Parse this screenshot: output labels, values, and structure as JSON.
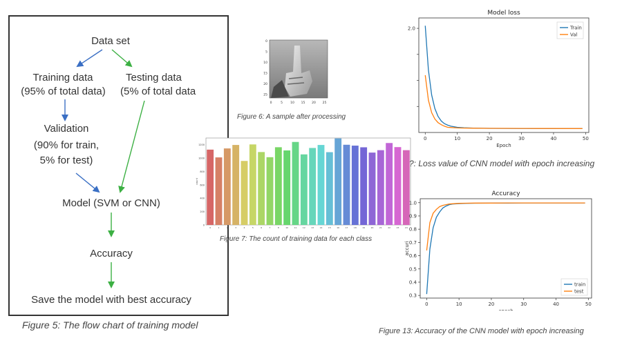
{
  "flowchart": {
    "nodes": {
      "dataset": "Data set",
      "training_1": "Training data",
      "training_2": "(95% of total data)",
      "testing_1": "Testing data",
      "testing_2": "(5% of total data",
      "validation_1": "Validation",
      "validation_2": "(90% for train,",
      "validation_3": "5% for test)",
      "model": "Model (SVM or CNN)",
      "accuracy": "Accuracy",
      "save": "Save the model with best accuracy"
    },
    "arrow_colors": {
      "blue": "#3a6fc4",
      "green": "#3cb043"
    },
    "caption": "Figure 5: The flow chart of training model"
  },
  "sample_image": {
    "caption": "Figure 6: A sample after processing",
    "x_ticks": [
      "0",
      "5",
      "10",
      "15",
      "20",
      "25"
    ],
    "y_ticks": [
      "0",
      "5",
      "10",
      "15",
      "20",
      "25"
    ]
  },
  "count_chart": {
    "caption": "Figure 7: The count of training data for each class",
    "ylabel": "count",
    "y_ticks": [
      "0",
      "200",
      "400",
      "600",
      "800",
      "1000",
      "1200"
    ],
    "x_ticks": [
      "0",
      "1",
      "2",
      "3",
      "4",
      "5",
      "6",
      "7",
      "8",
      "10",
      "11",
      "12",
      "13",
      "14",
      "15",
      "16",
      "17",
      "18",
      "19",
      "20",
      "21",
      "22",
      "23",
      "24"
    ]
  },
  "loss_chart": {
    "title": "Model loss",
    "xlabel": "Epoch",
    "caption": "?: Loss value of CNN model with epoch increasing",
    "y_tick_labels": [
      "2.0"
    ],
    "x_ticks": [
      "0",
      "10",
      "20",
      "30",
      "40",
      "50"
    ],
    "legend": [
      "Train",
      "Val"
    ]
  },
  "accuracy_chart": {
    "title": "Accuracy",
    "xlabel": "epoch",
    "ylabel": "accuri",
    "caption": "Figure 13: Accuracy of the CNN model with epoch increasing",
    "y_ticks": [
      "0.3",
      "0.4",
      "0.5",
      "0.6",
      "0.7",
      "0.8",
      "0.9",
      "1.0"
    ],
    "x_ticks": [
      "0",
      "10",
      "20",
      "30",
      "40",
      "50"
    ],
    "legend": [
      "train",
      "test"
    ]
  },
  "colors": {
    "train": "#1f77b4",
    "val": "#ff7f0e"
  },
  "chart_data": [
    {
      "type": "bar",
      "ylabel": "count",
      "categories": [
        "0",
        "1",
        "2",
        "3",
        "4",
        "5",
        "6",
        "7",
        "8",
        "10",
        "11",
        "12",
        "13",
        "14",
        "15",
        "16",
        "17",
        "18",
        "19",
        "20",
        "21",
        "22",
        "23",
        "24"
      ],
      "values": [
        1126,
        1010,
        1144,
        1196,
        957,
        1204,
        1090,
        1013,
        1162,
        1114,
        1241,
        1055,
        1151,
        1196,
        1088,
        1294,
        1199,
        1186,
        1161,
        1082,
        1118,
        1225,
        1164,
        1118
      ],
      "ylim": [
        0,
        1300
      ]
    },
    {
      "type": "line",
      "title": "Model loss",
      "xlabel": "Epoch",
      "xlim": [
        -2,
        51
      ],
      "ylim": [
        0.0,
        2.2
      ],
      "x": [
        0,
        1,
        2,
        3,
        4,
        5,
        6,
        7,
        8,
        10,
        12,
        15,
        20,
        25,
        30,
        35,
        40,
        45,
        49
      ],
      "series": [
        {
          "name": "Train",
          "values": [
            2.05,
            1.2,
            0.72,
            0.46,
            0.31,
            0.22,
            0.17,
            0.14,
            0.12,
            0.1,
            0.09,
            0.085,
            0.08,
            0.078,
            0.077,
            0.076,
            0.075,
            0.075,
            0.075
          ]
        },
        {
          "name": "Val",
          "values": [
            1.1,
            0.62,
            0.38,
            0.26,
            0.19,
            0.15,
            0.12,
            0.1,
            0.095,
            0.088,
            0.085,
            0.082,
            0.08,
            0.079,
            0.078,
            0.077,
            0.077,
            0.076,
            0.076
          ]
        }
      ]
    },
    {
      "type": "line",
      "title": "Accuracy",
      "xlabel": "epoch",
      "ylabel": "accuri",
      "xlim": [
        -2,
        51
      ],
      "ylim": [
        0.28,
        1.03
      ],
      "x": [
        0,
        1,
        2,
        3,
        4,
        5,
        6,
        7,
        8,
        10,
        12,
        15,
        20,
        25,
        30,
        35,
        40,
        45,
        49
      ],
      "series": [
        {
          "name": "train",
          "values": [
            0.31,
            0.65,
            0.81,
            0.89,
            0.93,
            0.96,
            0.975,
            0.985,
            0.99,
            0.993,
            0.995,
            0.996,
            0.997,
            0.997,
            0.998,
            0.998,
            0.998,
            0.998,
            0.998
          ]
        },
        {
          "name": "test",
          "values": [
            0.64,
            0.85,
            0.92,
            0.95,
            0.97,
            0.98,
            0.985,
            0.99,
            0.992,
            0.995,
            0.996,
            0.997,
            0.997,
            0.998,
            0.998,
            0.998,
            0.998,
            0.998,
            0.998
          ]
        }
      ]
    }
  ]
}
